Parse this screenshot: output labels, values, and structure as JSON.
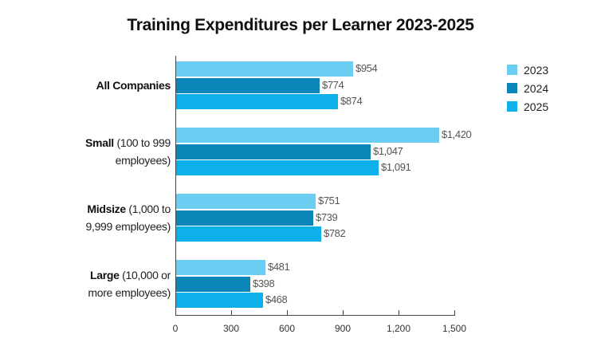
{
  "title": "Training Expenditures per Learner 2023-2025",
  "colors": {
    "2023": "#6ccdf2",
    "2024": "#0a86b8",
    "2025": "#0db0e8"
  },
  "legend": [
    {
      "label": "2023",
      "color": "#6ccdf2"
    },
    {
      "label": "2024",
      "color": "#0a86b8"
    },
    {
      "label": "2025",
      "color": "#0db0e8"
    }
  ],
  "categories": [
    {
      "bold": "All Companies",
      "rest": "",
      "line2": ""
    },
    {
      "bold": "Small",
      "rest": " (100 to 999",
      "line2": "employees)"
    },
    {
      "bold": "Midsize",
      "rest": " (1,000 to",
      "line2": "9,999 employees)"
    },
    {
      "bold": "Large",
      "rest": " (10,000 or",
      "line2": "more employees)"
    }
  ],
  "value_labels": [
    [
      "$954",
      "$774",
      "$874"
    ],
    [
      "$1,420",
      "$1,047",
      "$1,091"
    ],
    [
      "$751",
      "$739",
      "$782"
    ],
    [
      "$481",
      "$398",
      "$468"
    ]
  ],
  "ticks": [
    "0",
    "300",
    "600",
    "900",
    "1,200",
    "1,500"
  ],
  "chart_data": {
    "type": "bar",
    "orientation": "horizontal",
    "title": "Training Expenditures per Learner 2023-2025",
    "categories": [
      "All Companies",
      "Small (100 to 999 employees)",
      "Midsize (1,000 to 9,999 employees)",
      "Large (10,000 or more employees)"
    ],
    "series": [
      {
        "name": "2023",
        "values": [
          954,
          1420,
          751,
          481
        ]
      },
      {
        "name": "2024",
        "values": [
          774,
          1047,
          739,
          398
        ]
      },
      {
        "name": "2025",
        "values": [
          874,
          1091,
          782,
          468
        ]
      }
    ],
    "xlabel": "",
    "ylabel": "",
    "xlim": [
      0,
      1500
    ],
    "xticks": [
      0,
      300,
      600,
      900,
      1200,
      1500
    ],
    "value_prefix": "$",
    "grid": false,
    "legend_position": "top-right"
  }
}
